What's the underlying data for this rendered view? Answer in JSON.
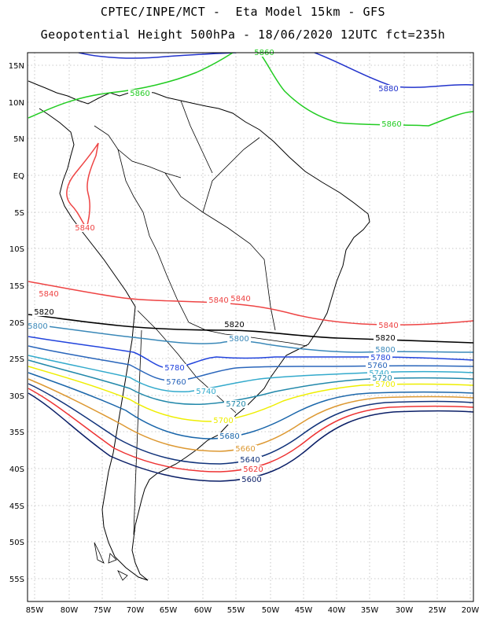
{
  "title": {
    "line1": "CPTEC/INPE/MCT -  Eta Model 15km - GFS",
    "line2": "Geopotential Height 500hPa - 18/06/2020 12UTC fct=235h"
  },
  "axes": {
    "x_ticks": [
      "85W",
      "80W",
      "75W",
      "70W",
      "65W",
      "60W",
      "55W",
      "50W",
      "45W",
      "40W",
      "35W",
      "30W",
      "25W",
      "20W"
    ],
    "y_ticks": [
      "15N",
      "10N",
      "5N",
      "EQ",
      "5S",
      "10S",
      "15S",
      "20S",
      "25S",
      "30S",
      "35S",
      "40S",
      "45S",
      "50S",
      "55S"
    ]
  },
  "contours": [
    {
      "level": "5880",
      "color": "#2233cc",
      "labels": [
        "5880"
      ]
    },
    {
      "level": "5860",
      "color": "#22cc22",
      "labels": [
        "5860",
        "5860",
        "5860"
      ]
    },
    {
      "level": "5840",
      "color": "#ee4444",
      "labels": [
        "5840",
        "5840",
        "5840",
        "5840",
        "5840"
      ]
    },
    {
      "level": "5820",
      "color": "#000000",
      "labels": [
        "5820",
        "5820",
        "5820"
      ]
    },
    {
      "level": "5800",
      "color": "#3a88b8",
      "labels": [
        "5800",
        "5800",
        "5800"
      ]
    },
    {
      "level": "5780",
      "color": "#2244dd",
      "labels": [
        "5780",
        "5780"
      ]
    },
    {
      "level": "5760",
      "color": "#2a66bb",
      "labels": [
        "5760",
        "5760"
      ]
    },
    {
      "level": "5740",
      "color": "#33aacc",
      "labels": [
        "5740",
        "5740"
      ]
    },
    {
      "level": "5720",
      "color": "#2288aa",
      "labels": [
        "5720",
        "5720"
      ]
    },
    {
      "level": "5700",
      "color": "#eeee00",
      "labels": [
        "5700",
        "5700"
      ]
    },
    {
      "level": "5680",
      "color": "#1a66aa",
      "labels": [
        "5680"
      ]
    },
    {
      "level": "5660",
      "color": "#dd9933",
      "labels": [
        "5660"
      ]
    },
    {
      "level": "5640",
      "color": "#11337a",
      "labels": [
        "5640"
      ]
    },
    {
      "level": "5620",
      "color": "#ee3333",
      "labels": [
        "5620"
      ]
    },
    {
      "level": "5600",
      "color": "#0a1e66",
      "labels": [
        "5600"
      ]
    }
  ]
}
